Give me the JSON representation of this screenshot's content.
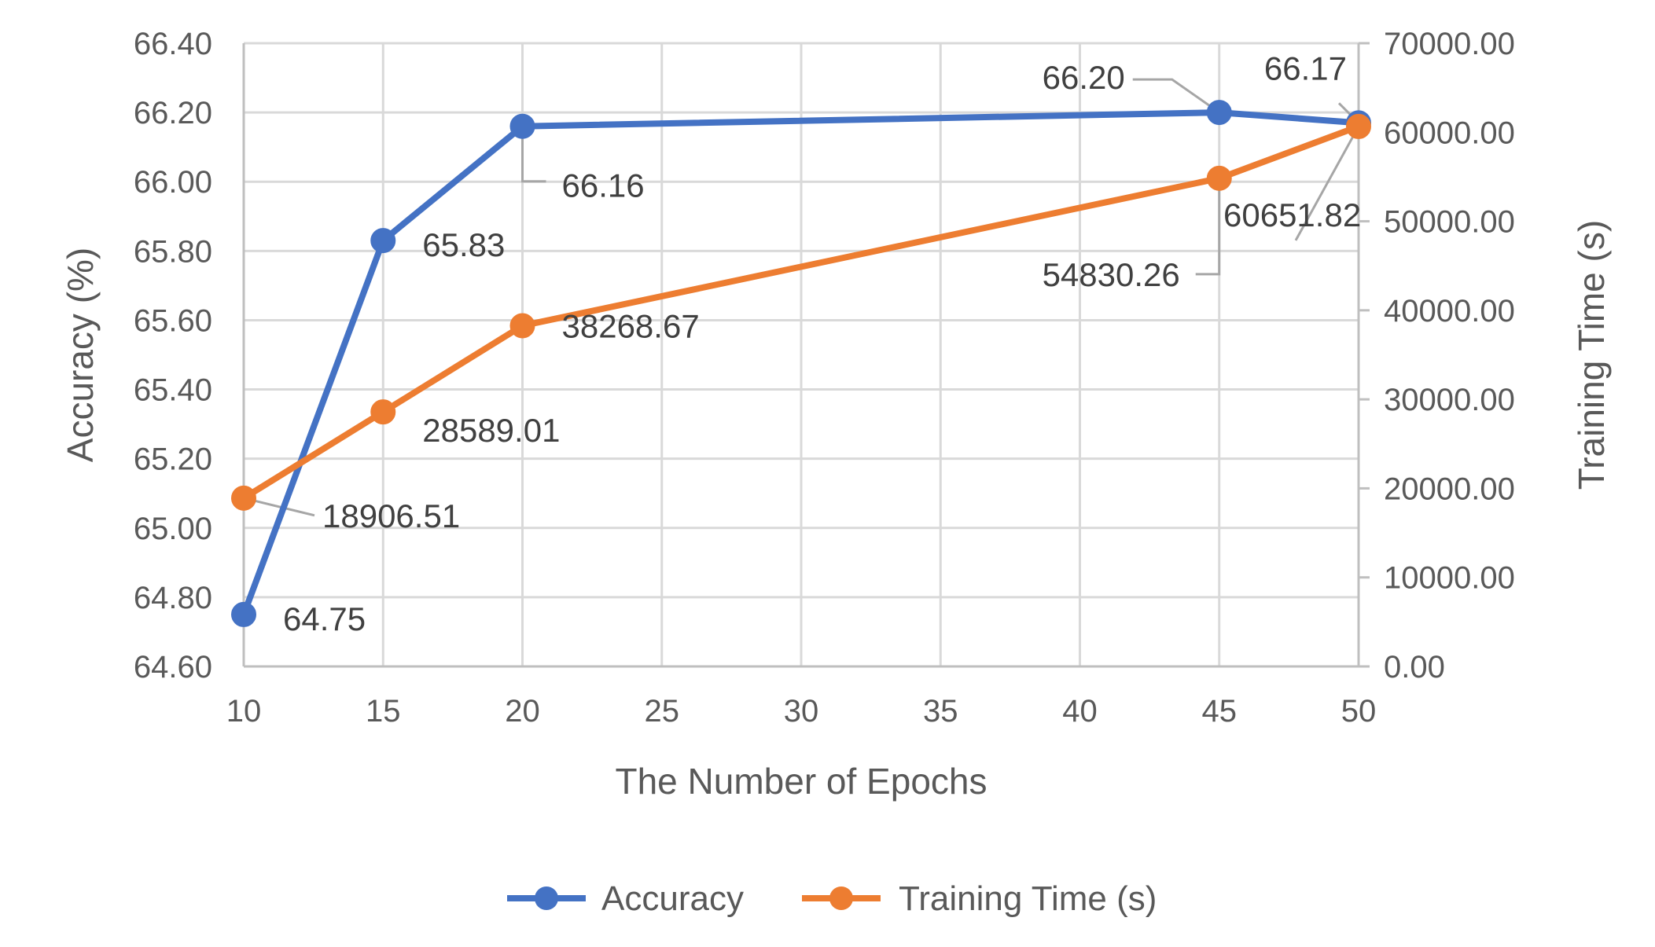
{
  "chart_data": {
    "type": "line",
    "x": [
      10,
      15,
      20,
      45,
      50
    ],
    "xlabel": "The Number of Epochs",
    "xlim": [
      10,
      50
    ],
    "xticks": [
      "10",
      "15",
      "20",
      "25",
      "30",
      "35",
      "40",
      "45",
      "50"
    ],
    "ylabel_left": "Accuracy (%)",
    "ylim_left": [
      64.6,
      66.4
    ],
    "yticks_left": [
      "64.60",
      "64.80",
      "65.00",
      "65.20",
      "65.40",
      "65.60",
      "65.80",
      "66.00",
      "66.20",
      "66.40"
    ],
    "ylabel_right": "Training Time (s)",
    "ylim_right": [
      0,
      70000
    ],
    "yticks_right": [
      "0.00",
      "10000.00",
      "20000.00",
      "30000.00",
      "40000.00",
      "50000.00",
      "60000.00",
      "70000.00"
    ],
    "grid": true,
    "legend_position": "bottom",
    "series": [
      {
        "name": "Accuracy",
        "axis": "left",
        "color": "#4472c4",
        "values": [
          64.75,
          65.83,
          66.16,
          66.2,
          66.17
        ],
        "labels": [
          "64.75",
          "65.83",
          "66.16",
          "66.20",
          "66.17"
        ]
      },
      {
        "name": "Training Time (s)",
        "axis": "right",
        "color": "#ed7d31",
        "values": [
          18906.51,
          28589.01,
          38268.67,
          54830.26,
          60651.82
        ],
        "labels": [
          "18906.51",
          "28589.01",
          "38268.67",
          "54830.26",
          "60651.82"
        ]
      }
    ]
  }
}
